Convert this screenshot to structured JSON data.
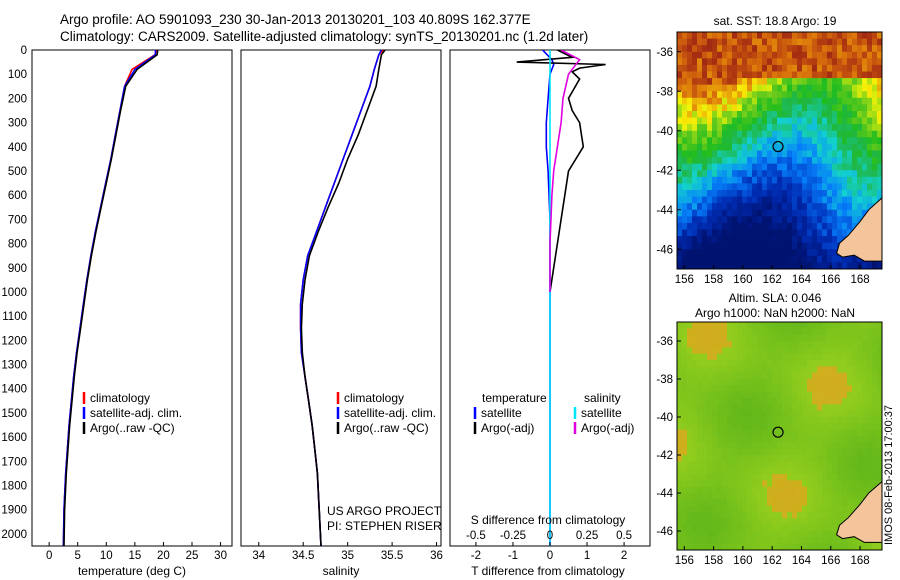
{
  "header": {
    "title_line1": "Argo profile: AO 5901093_230 30-Jan-2013 20130201_103 40.809S 162.377E",
    "title_line2": "Climatology: CARS2009. Satellite-adjusted climatology: synTS_20130201.nc (1.2d later)"
  },
  "colors": {
    "climatology": "#ff0000",
    "satellite": "#0000ff",
    "argo": "#000000",
    "salinity_satellite": "#00e5ff",
    "salinity_argo": "#e000e0",
    "land": "#f4c49a"
  },
  "y_axis": {
    "ticks": [
      "0",
      "100",
      "200",
      "300",
      "400",
      "500",
      "600",
      "700",
      "800",
      "900",
      "1000",
      "1100",
      "1200",
      "1300",
      "1400",
      "1500",
      "1600",
      "1700",
      "1800",
      "1900",
      "2000"
    ]
  },
  "panels": {
    "temperature": {
      "xlabel": "temperature (deg C)",
      "xticks": [
        "0",
        "5",
        "10",
        "15",
        "20",
        "25",
        "30"
      ],
      "legend": [
        "climatology",
        "satellite-adj. clim.",
        "Argo(..raw -QC)"
      ]
    },
    "salinity": {
      "xlabel": "salinity",
      "xticks": [
        "34",
        "34.5",
        "35",
        "35.5",
        "36"
      ],
      "legend": [
        "climatology",
        "satellite-adj. clim.",
        "Argo(..raw -QC)"
      ],
      "credit_line1": "US ARGO PROJECT",
      "credit_line2": "PI: STEPHEN RISER"
    },
    "difference": {
      "xlabel": "T difference from climatology",
      "top_label": "S difference from climatology",
      "s_ticks": [
        "-0.5",
        "-0.25",
        "0",
        "0.25",
        "0.5"
      ],
      "t_ticks": [
        "-2",
        "-1",
        "0",
        "1",
        "2"
      ],
      "legend_temp_head": "temperature",
      "legend_sal_head": "salinity",
      "legend_temp": [
        "satellite",
        "Argo(-adj)"
      ],
      "legend_sal": [
        "satellite",
        "Argo(-adj)"
      ]
    },
    "sst_map": {
      "title": "sat. SST: 18.8 Argo: 19",
      "lat_ticks": [
        "-36",
        "-38",
        "-40",
        "-42",
        "-44",
        "-46"
      ],
      "lon_ticks": [
        "156",
        "158",
        "160",
        "162",
        "164",
        "166",
        "168"
      ]
    },
    "sla_map": {
      "title1": "Altim. SLA: 0.046",
      "title2": "Argo h1000: NaN h2000: NaN",
      "lat_ticks": [
        "-36",
        "-38",
        "-40",
        "-42",
        "-44",
        "-46"
      ],
      "lon_ticks": [
        "156",
        "158",
        "160",
        "162",
        "164",
        "166",
        "168"
      ]
    }
  },
  "timestamp": "IMOS 08-Feb-2013 17:00:37",
  "chart_data": [
    {
      "type": "line",
      "xlabel": "temperature (deg C)",
      "xlim": [
        -3,
        32
      ],
      "ylim": [
        0,
        2050
      ],
      "y_reversed": true,
      "series": [
        {
          "name": "climatology",
          "color": "#ff0000",
          "x": [
            18.8,
            18.5,
            14.5,
            13.2,
            12.4,
            11.6,
            10.8,
            9.9,
            9.0,
            8.1,
            7.3,
            6.6,
            6.0,
            5.4,
            4.8,
            4.3,
            3.9,
            3.5,
            3.2,
            2.9,
            2.6,
            2.5
          ],
          "y": [
            0,
            20,
            80,
            150,
            250,
            350,
            450,
            550,
            650,
            750,
            850,
            950,
            1050,
            1150,
            1250,
            1350,
            1450,
            1550,
            1650,
            1750,
            1900,
            2050
          ]
        },
        {
          "name": "satellite-adj. clim.",
          "color": "#0000ff",
          "x": [
            18.6,
            18.6,
            15.0,
            13.2,
            12.4,
            11.6,
            10.8,
            9.9,
            9.0,
            8.1,
            7.3,
            6.6,
            6.0,
            5.4,
            4.8,
            4.3,
            3.9,
            3.5,
            3.2,
            2.9,
            2.6,
            2.5
          ],
          "y": [
            0,
            20,
            80,
            150,
            250,
            350,
            450,
            550,
            650,
            750,
            850,
            950,
            1050,
            1150,
            1250,
            1350,
            1450,
            1550,
            1650,
            1750,
            1900,
            2050
          ]
        },
        {
          "name": "Argo(..raw -QC)",
          "color": "#000000",
          "x": [
            19.0,
            18.9,
            15.4,
            13.4,
            12.5,
            11.7,
            10.9,
            10.0,
            9.1,
            8.2,
            7.4,
            6.7,
            6.1,
            5.5,
            4.9,
            4.4,
            4.0,
            3.6,
            3.3,
            3.0,
            2.7,
            2.6
          ],
          "y": [
            0,
            20,
            80,
            150,
            250,
            350,
            450,
            550,
            650,
            750,
            850,
            950,
            1050,
            1150,
            1250,
            1350,
            1450,
            1550,
            1650,
            1750,
            1900,
            2050
          ]
        }
      ]
    },
    {
      "type": "line",
      "xlabel": "salinity",
      "xlim": [
        33.8,
        36.05
      ],
      "ylim": [
        0,
        2050
      ],
      "y_reversed": true,
      "series": [
        {
          "name": "climatology",
          "color": "#ff0000",
          "x": [
            35.4,
            35.35,
            35.3,
            35.25,
            35.15,
            35.05,
            34.95,
            34.85,
            34.75,
            34.65,
            34.55,
            34.5,
            34.47,
            34.47,
            34.48,
            34.52,
            34.56,
            34.6,
            34.63,
            34.66,
            34.68,
            34.7
          ],
          "y": [
            0,
            20,
            80,
            150,
            250,
            350,
            450,
            550,
            650,
            750,
            850,
            950,
            1050,
            1150,
            1250,
            1350,
            1450,
            1550,
            1650,
            1750,
            1900,
            2050
          ]
        },
        {
          "name": "satellite-adj. clim.",
          "color": "#0000ff",
          "x": [
            35.38,
            35.35,
            35.3,
            35.25,
            35.15,
            35.05,
            34.95,
            34.85,
            34.75,
            34.65,
            34.55,
            34.5,
            34.47,
            34.47,
            34.48,
            34.52,
            34.56,
            34.6,
            34.63,
            34.66,
            34.68,
            34.7
          ],
          "y": [
            0,
            20,
            80,
            150,
            250,
            350,
            450,
            550,
            650,
            750,
            850,
            950,
            1050,
            1150,
            1250,
            1350,
            1450,
            1550,
            1650,
            1750,
            1900,
            2050
          ]
        },
        {
          "name": "Argo(..raw -QC)",
          "color": "#000000",
          "x": [
            35.42,
            35.38,
            35.35,
            35.32,
            35.22,
            35.12,
            35.0,
            34.9,
            34.78,
            34.67,
            34.57,
            34.52,
            34.49,
            34.48,
            34.49,
            34.52,
            34.56,
            34.6,
            34.63,
            34.66,
            34.68,
            34.7
          ],
          "y": [
            0,
            20,
            80,
            150,
            250,
            350,
            450,
            550,
            650,
            750,
            850,
            950,
            1050,
            1150,
            1250,
            1350,
            1450,
            1550,
            1650,
            1750,
            1900,
            2050
          ]
        }
      ]
    },
    {
      "type": "line",
      "xlabel": "T difference from climatology",
      "xlim": [
        -2.7,
        2.7
      ],
      "ylim": [
        0,
        2050
      ],
      "y_reversed": true,
      "series": [
        {
          "name": "satellite",
          "color": "#0000ff",
          "x": [
            -0.2,
            0.05,
            0.1,
            0.0,
            -0.05,
            -0.1,
            -0.1,
            -0.05,
            0.0,
            0.0,
            0.0,
            0.0,
            0.0,
            0.0
          ],
          "y": [
            0,
            40,
            60,
            100,
            200,
            300,
            400,
            500,
            700,
            900,
            1100,
            1400,
            1700,
            2050
          ]
        },
        {
          "name": "Argo(-adj)",
          "color": "#000000",
          "x": [
            0.2,
            0.6,
            -0.9,
            1.5,
            0.8,
            0.6,
            0.8,
            0.5,
            0.6,
            0.8,
            0.9,
            0.5,
            0.4,
            0.3,
            0.2,
            0.1,
            0.0
          ],
          "y": [
            0,
            30,
            50,
            60,
            75,
            90,
            120,
            200,
            250,
            300,
            400,
            500,
            600,
            700,
            800,
            900,
            1000
          ]
        },
        {
          "name": "S satellite",
          "color": "#00e5ff",
          "x": [
            0,
            0,
            0,
            0,
            0,
            0
          ],
          "y": [
            0,
            200,
            600,
            1000,
            1500,
            2050
          ]
        },
        {
          "name": "S Argo(-adj)",
          "color": "#e000e0",
          "x": [
            0.3,
            0.8,
            0.5,
            0.35,
            0.3,
            0.2,
            0.1,
            0.05,
            0.0,
            0.0
          ],
          "y": [
            0,
            40,
            100,
            200,
            300,
            400,
            500,
            600,
            800,
            1000
          ]
        }
      ]
    },
    {
      "type": "heatmap",
      "title": "sat. SST: 18.8 Argo: 19",
      "xlim": [
        155.5,
        169.5
      ],
      "ylim": [
        -47,
        -35
      ],
      "argo_position": [
        162.4,
        -40.8
      ]
    },
    {
      "type": "heatmap",
      "title": "Altim. SLA: 0.046",
      "xlim": [
        155.5,
        169.5
      ],
      "ylim": [
        -47,
        -35
      ],
      "argo_position": [
        162.4,
        -40.8
      ]
    }
  ]
}
